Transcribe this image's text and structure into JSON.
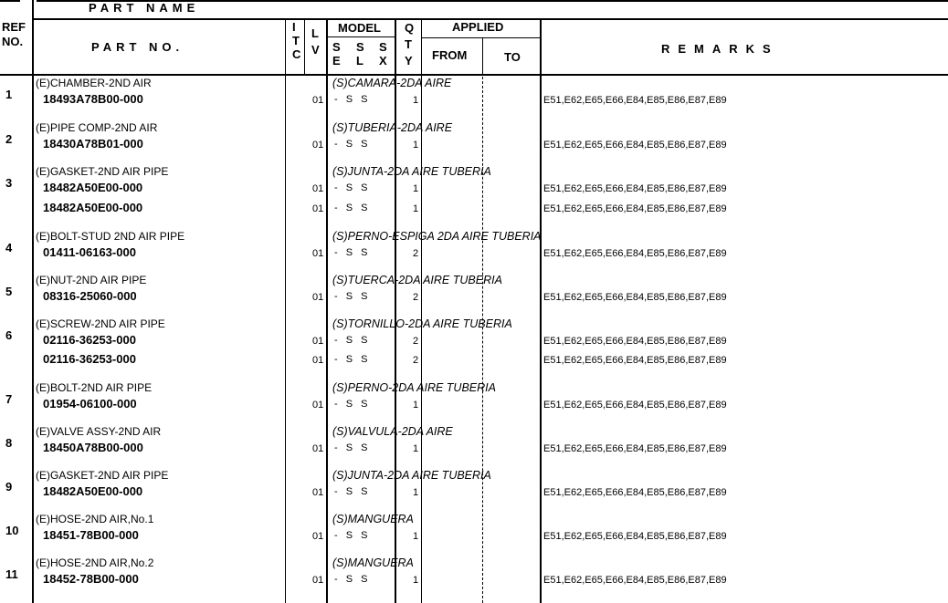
{
  "header": {
    "part_name": "PART NAME",
    "ref_no_line1": "REF",
    "ref_no_line2": "NO.",
    "part_no": "PART NO.",
    "itc": [
      "I",
      "T",
      "C"
    ],
    "lv": [
      "L",
      "V"
    ],
    "model": "MODEL",
    "model_cols": [
      [
        "S",
        "E"
      ],
      [
        "S",
        "L"
      ],
      [
        "S",
        "X"
      ]
    ],
    "qty": [
      "Q",
      "T",
      "Y"
    ],
    "applied": "APPLIED",
    "from": "FROM",
    "to": "TO",
    "remarks": "REMARKS"
  },
  "rows": [
    {
      "ref": "1",
      "name": "(E)CHAMBER-2ND AIR",
      "name_es": "(S)CAMARA-2DA AIRE",
      "lines": [
        {
          "part_no": "18493A78B00-000",
          "lv": "01",
          "model": "-  S  S",
          "qty": "1",
          "remarks": "E51,E62,E65,E66,E84,E85,E86,E87,E89"
        }
      ]
    },
    {
      "ref": "2",
      "name": "(E)PIPE COMP-2ND AIR",
      "name_es": "(S)TUBERIA-2DA AIRE",
      "lines": [
        {
          "part_no": "18430A78B01-000",
          "lv": "01",
          "model": "-  S  S",
          "qty": "1",
          "remarks": "E51,E62,E65,E66,E84,E85,E86,E87,E89"
        }
      ]
    },
    {
      "ref": "3",
      "name": "(E)GASKET-2ND AIR PIPE",
      "name_es": "(S)JUNTA-2DA AIRE TUBERIA",
      "lines": [
        {
          "part_no": "18482A50E00-000",
          "lv": "01",
          "model": "-  S  S",
          "qty": "1",
          "remarks": "E51,E62,E65,E66,E84,E85,E86,E87,E89"
        },
        {
          "part_no": "18482A50E00-000",
          "lv": "01",
          "model": "-  S  S",
          "qty": "1",
          "remarks": "E51,E62,E65,E66,E84,E85,E86,E87,E89"
        }
      ]
    },
    {
      "ref": "4",
      "name": "(E)BOLT-STUD 2ND AIR PIPE",
      "name_es": "(S)PERNO-ESPIGA 2DA AIRE TUBERIA",
      "lines": [
        {
          "part_no": "01411-06163-000",
          "lv": "01",
          "model": "-  S  S",
          "qty": "2",
          "remarks": "E51,E62,E65,E66,E84,E85,E86,E87,E89"
        }
      ]
    },
    {
      "ref": "5",
      "name": "(E)NUT-2ND AIR PIPE",
      "name_es": "(S)TUERCA-2DA AIRE TUBERIA",
      "lines": [
        {
          "part_no": "08316-25060-000",
          "lv": "01",
          "model": "-  S  S",
          "qty": "2",
          "remarks": "E51,E62,E65,E66,E84,E85,E86,E87,E89"
        }
      ]
    },
    {
      "ref": "6",
      "name": "(E)SCREW-2ND AIR PIPE",
      "name_es": "(S)TORNILLO-2DA AIRE TUBERIA",
      "lines": [
        {
          "part_no": "02116-36253-000",
          "lv": "01",
          "model": "-  S  S",
          "qty": "2",
          "remarks": "E51,E62,E65,E66,E84,E85,E86,E87,E89"
        },
        {
          "part_no": "02116-36253-000",
          "lv": "01",
          "model": "-  S  S",
          "qty": "2",
          "remarks": "E51,E62,E65,E66,E84,E85,E86,E87,E89"
        }
      ]
    },
    {
      "ref": "7",
      "name": "(E)BOLT-2ND AIR PIPE",
      "name_es": "(S)PERNO-2DA AIRE TUBERIA",
      "lines": [
        {
          "part_no": "01954-06100-000",
          "lv": "01",
          "model": "-  S  S",
          "qty": "1",
          "remarks": "E51,E62,E65,E66,E84,E85,E86,E87,E89"
        }
      ]
    },
    {
      "ref": "8",
      "name": "(E)VALVE ASSY-2ND AIR",
      "name_es": "(S)VALVULA-2DA AIRE",
      "lines": [
        {
          "part_no": "18450A78B00-000",
          "lv": "01",
          "model": "-  S  S",
          "qty": "1",
          "remarks": "E51,E62,E65,E66,E84,E85,E86,E87,E89"
        }
      ]
    },
    {
      "ref": "9",
      "name": "(E)GASKET-2ND AIR PIPE",
      "name_es": "(S)JUNTA-2DA AIRE TUBERIA",
      "lines": [
        {
          "part_no": "18482A50E00-000",
          "lv": "01",
          "model": "-  S  S",
          "qty": "1",
          "remarks": "E51,E62,E65,E66,E84,E85,E86,E87,E89"
        }
      ]
    },
    {
      "ref": "10",
      "name": "(E)HOSE-2ND AIR,No.1",
      "name_es": "(S)MANGUERA",
      "lines": [
        {
          "part_no": "18451-78B00-000",
          "lv": "01",
          "model": "-  S  S",
          "qty": "1",
          "remarks": "E51,E62,E65,E66,E84,E85,E86,E87,E89"
        }
      ]
    },
    {
      "ref": "11",
      "name": "(E)HOSE-2ND AIR,No.2",
      "name_es": "(S)MANGUERA",
      "lines": [
        {
          "part_no": "18452-78B00-000",
          "lv": "01",
          "model": "-  S  S",
          "qty": "1",
          "remarks": "E51,E62,E65,E66,E84,E85,E86,E87,E89"
        }
      ]
    }
  ]
}
